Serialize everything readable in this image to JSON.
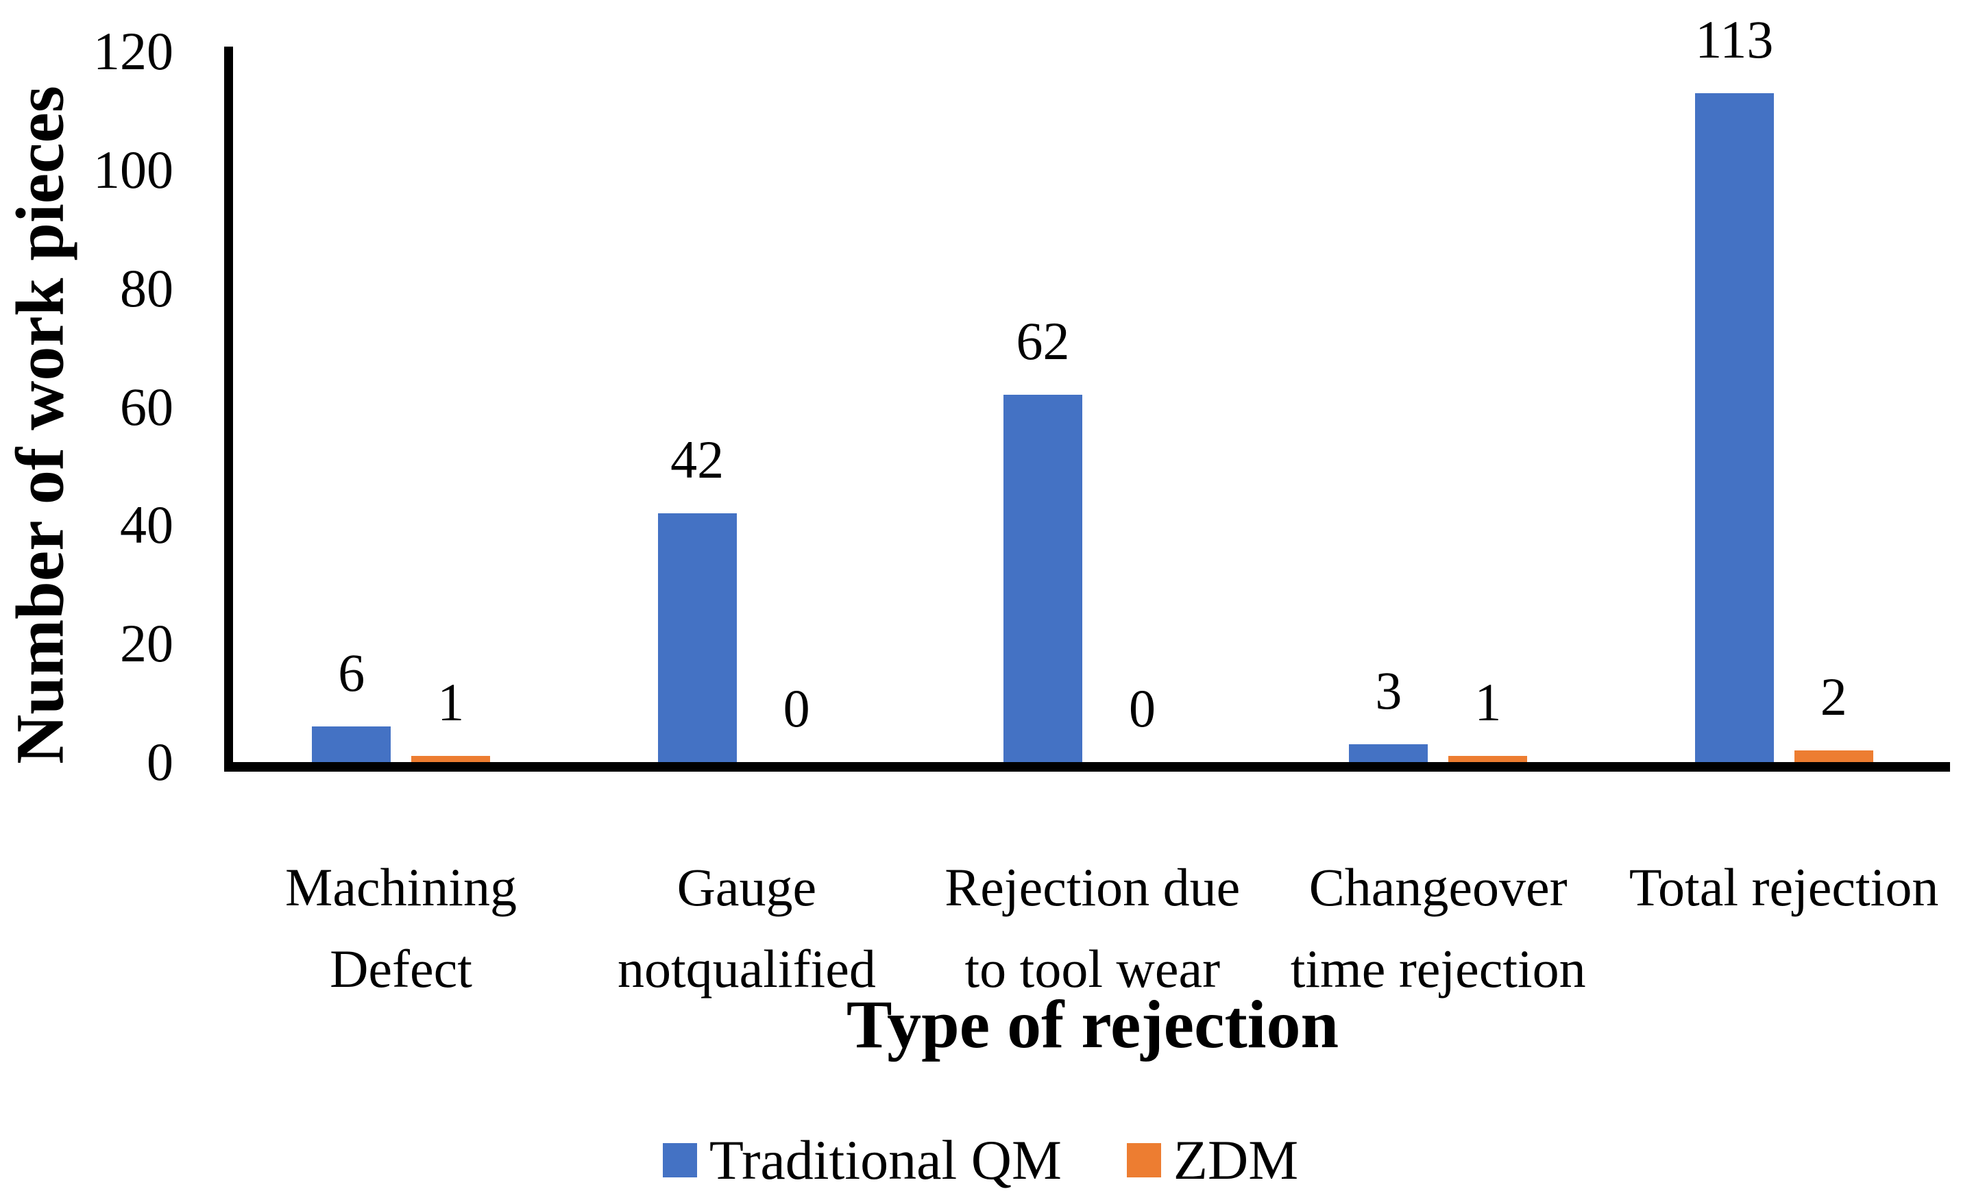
{
  "chart_data": {
    "type": "bar",
    "title": "",
    "ylabel": "Number of work pieces",
    "xlabel": "Type of rejection",
    "ylim": [
      0,
      120
    ],
    "yticks": [
      0,
      20,
      40,
      60,
      80,
      100,
      120
    ],
    "categories": [
      "Machining Defect",
      "Gauge notqualified",
      "Rejection due to tool wear",
      "Changeover time rejection",
      "Total rejection"
    ],
    "category_lines": [
      [
        "Machining",
        "Defect"
      ],
      [
        "Gauge",
        "notqualified"
      ],
      [
        "Rejection due",
        "to tool wear"
      ],
      [
        "Changeover",
        "time rejection"
      ],
      [
        "Total rejection"
      ]
    ],
    "series": [
      {
        "name": "Traditional QM",
        "color": "#4472C4",
        "values": [
          6,
          42,
          62,
          3,
          113
        ]
      },
      {
        "name": "ZDM",
        "color": "#ED7D31",
        "values": [
          1,
          0,
          0,
          1,
          2
        ]
      }
    ],
    "data_labels": true,
    "grid": false,
    "legend_position": "bottom",
    "background": "#FFFFFF",
    "axis_color": "#000000",
    "text_color": "#000000"
  }
}
